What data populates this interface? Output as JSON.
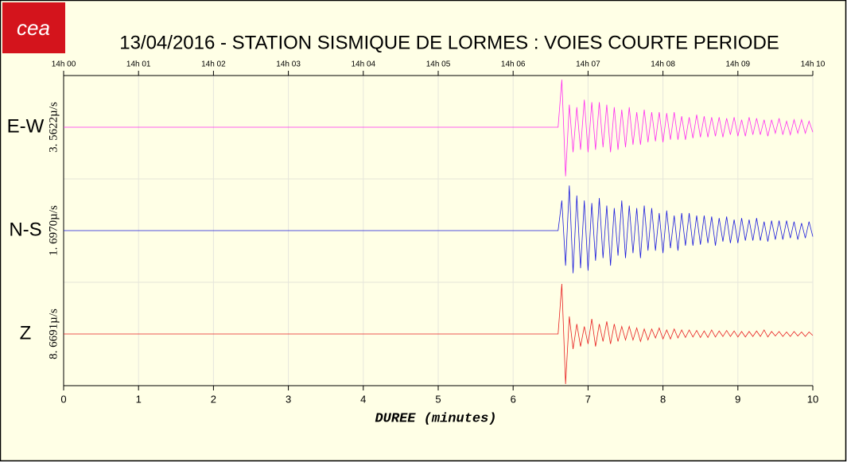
{
  "chart_data": {
    "type": "line",
    "logo": "cea",
    "title": "13/04/2016  -  STATION SISMIQUE DE LORMES : VOIES COURTE PERIODE",
    "x_label": "DUREE (minutes)",
    "xlim": [
      0,
      10
    ],
    "xticks": [
      0,
      1,
      2,
      3,
      4,
      5,
      6,
      7,
      8,
      9,
      10
    ],
    "x2ticks": [
      {
        "value": 0,
        "label": "14h 00"
      },
      {
        "value": 1,
        "label": "14h 01"
      },
      {
        "value": 2,
        "label": "14h 02"
      },
      {
        "value": 3,
        "label": "14h 03"
      },
      {
        "value": 4,
        "label": "14h 04"
      },
      {
        "value": 5,
        "label": "14h 05"
      },
      {
        "value": 6,
        "label": "14h 06"
      },
      {
        "value": 7,
        "label": "14h 07"
      },
      {
        "value": 8,
        "label": "14h 08"
      },
      {
        "value": 9,
        "label": "14h 09"
      },
      {
        "value": 10,
        "label": "14h 10"
      }
    ],
    "ylim": [
      -1,
      1
    ],
    "grid": true,
    "x": [
      0,
      6.6,
      6.65,
      6.7,
      6.75,
      6.8,
      6.85,
      6.9,
      6.95,
      7,
      7.05,
      7.1,
      7.15,
      7.2,
      7.25,
      7.3,
      7.35,
      7.4,
      7.45,
      7.5,
      7.55,
      7.6,
      7.65,
      7.7,
      7.75,
      7.8,
      7.85,
      7.9,
      7.95,
      8,
      8.05,
      8.1,
      8.15,
      8.2,
      8.25,
      8.3,
      8.35,
      8.4,
      8.45,
      8.5,
      8.55,
      8.6,
      8.65,
      8.7,
      8.75,
      8.8,
      8.85,
      8.9,
      8.95,
      9,
      9.05,
      9.1,
      9.15,
      9.2,
      9.25,
      9.3,
      9.35,
      9.4,
      9.45,
      9.5,
      9.55,
      9.6,
      9.65,
      9.7,
      9.75,
      9.8,
      9.85,
      9.9,
      9.95,
      10
    ],
    "series": [
      {
        "name": "E-W",
        "scale_label": "3. 5622µ/s",
        "color": "#ff2cf0",
        "values": [
          0,
          0,
          0.95,
          -0.98,
          0.45,
          -0.5,
          0.4,
          -0.45,
          0.55,
          -0.5,
          0.5,
          -0.45,
          0.5,
          -0.4,
          0.45,
          -0.5,
          0.4,
          -0.45,
          0.35,
          -0.4,
          0.4,
          -0.35,
          0.3,
          -0.35,
          0.35,
          -0.3,
          0.3,
          -0.28,
          0.3,
          -0.3,
          0.28,
          -0.25,
          0.3,
          -0.25,
          0.22,
          -0.25,
          0.2,
          -0.22,
          0.25,
          -0.2,
          0.22,
          -0.2,
          0.2,
          -0.18,
          0.2,
          -0.2,
          0.18,
          -0.15,
          0.2,
          -0.18,
          0.15,
          -0.18,
          0.2,
          -0.15,
          0.18,
          -0.15,
          0.15,
          -0.18,
          0.15,
          -0.12,
          0.18,
          -0.15,
          0.12,
          -0.15,
          0.15,
          -0.12,
          0.15,
          -0.12,
          0.12,
          -0.1
        ]
      },
      {
        "name": "N-S",
        "scale_label": "1. 6970µ/s",
        "color": "#1a1adc",
        "values": [
          0,
          0,
          0.6,
          -0.7,
          0.9,
          -0.85,
          0.7,
          -0.75,
          0.6,
          -0.8,
          0.55,
          -0.6,
          0.65,
          -0.55,
          0.5,
          -0.7,
          0.45,
          -0.5,
          0.6,
          -0.55,
          0.5,
          -0.45,
          0.45,
          -0.55,
          0.5,
          -0.4,
          0.45,
          -0.4,
          0.35,
          -0.45,
          0.4,
          -0.35,
          0.3,
          -0.4,
          0.35,
          -0.3,
          0.35,
          -0.3,
          0.3,
          -0.28,
          0.3,
          -0.25,
          0.28,
          -0.3,
          0.25,
          -0.22,
          0.28,
          -0.25,
          0.22,
          -0.25,
          0.25,
          -0.2,
          0.22,
          -0.2,
          0.25,
          -0.2,
          0.18,
          -0.22,
          0.2,
          -0.18,
          0.2,
          -0.18,
          0.2,
          -0.15,
          0.18,
          -0.18,
          0.15,
          -0.15,
          0.18,
          -0.12
        ]
      },
      {
        "name": "Z",
        "scale_label": "8. 6691µ/s",
        "color": "#e82020",
        "values": [
          0,
          0,
          1,
          -1,
          0.35,
          -0.3,
          0.2,
          -0.25,
          0.15,
          -0.2,
          0.3,
          -0.25,
          0.2,
          -0.15,
          0.25,
          -0.2,
          0.2,
          -0.15,
          0.15,
          -0.12,
          0.15,
          -0.12,
          0.12,
          -0.15,
          0.1,
          -0.12,
          0.1,
          -0.08,
          0.12,
          -0.1,
          0.08,
          -0.1,
          0.1,
          -0.08,
          0.08,
          -0.07,
          0.08,
          -0.06,
          0.07,
          -0.07,
          0.06,
          -0.07,
          0.08,
          -0.06,
          0.06,
          -0.05,
          0.07,
          -0.05,
          0.06,
          -0.06,
          0.05,
          -0.06,
          0.05,
          -0.05,
          0.06,
          -0.05,
          0.08,
          -0.06,
          0.05,
          -0.04,
          0.05,
          -0.05,
          0.04,
          -0.05,
          0.05,
          -0.04,
          0.04,
          -0.05,
          0.04,
          -0.03
        ]
      }
    ]
  }
}
